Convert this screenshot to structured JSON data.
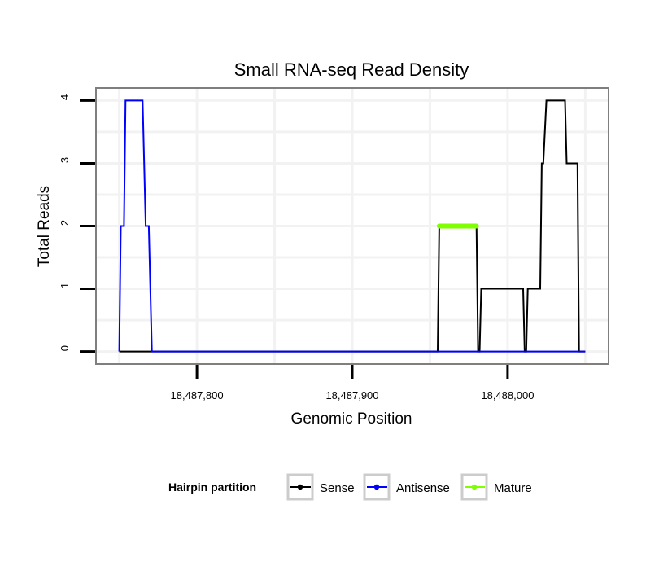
{
  "chart_data": {
    "type": "line",
    "title": "Small RNA-seq Read Density",
    "xlabel": "Genomic Position",
    "ylabel": "Total Reads",
    "xlim": [
      18487735,
      18488065
    ],
    "ylim": [
      -0.2,
      4.2
    ],
    "x_ticks": [
      {
        "value": 18487800,
        "label": "18,487,800"
      },
      {
        "value": 18487900,
        "label": "18,487,900"
      },
      {
        "value": 18488000,
        "label": "18,488,000"
      }
    ],
    "y_ticks": [
      {
        "value": 0,
        "label": "0"
      },
      {
        "value": 1,
        "label": "1"
      },
      {
        "value": 2,
        "label": "2"
      },
      {
        "value": 3,
        "label": "3"
      },
      {
        "value": 4,
        "label": "4"
      }
    ],
    "grid": true,
    "legend": {
      "title": "Hairpin partition",
      "position": "bottom",
      "entries": [
        {
          "name": "Sense",
          "color": "#000000"
        },
        {
          "name": "Antisense",
          "color": "#0000ff"
        },
        {
          "name": "Mature",
          "color": "#7fff00"
        }
      ]
    },
    "series": [
      {
        "name": "Sense",
        "color": "#000000",
        "x": [
          18487750,
          18487955,
          18487956,
          18487957,
          18487979,
          18487980,
          18487981,
          18487982,
          18487983,
          18488009,
          18488010,
          18488011,
          18488012,
          18488013,
          18488021,
          18488022,
          18488023,
          18488025,
          18488026,
          18488037,
          18488038,
          18488045,
          18488046,
          18488050
        ],
        "values": [
          0,
          0,
          2,
          2,
          2,
          2,
          0,
          0,
          1,
          1,
          1,
          0,
          0,
          1,
          1,
          3,
          3,
          4,
          4,
          4,
          3,
          3,
          0,
          0
        ]
      },
      {
        "name": "Antisense",
        "color": "#0000ff",
        "x": [
          18487750,
          18487751,
          18487753,
          18487754,
          18487756,
          18487765,
          18487767,
          18487769,
          18487771,
          18487772,
          18488050
        ],
        "values": [
          0,
          2,
          2,
          4,
          4,
          4,
          2,
          2,
          0,
          0,
          0
        ]
      },
      {
        "name": "Mature",
        "color": "#7fff00",
        "x": [
          18487956,
          18487980
        ],
        "values": [
          2,
          2
        ]
      }
    ]
  }
}
